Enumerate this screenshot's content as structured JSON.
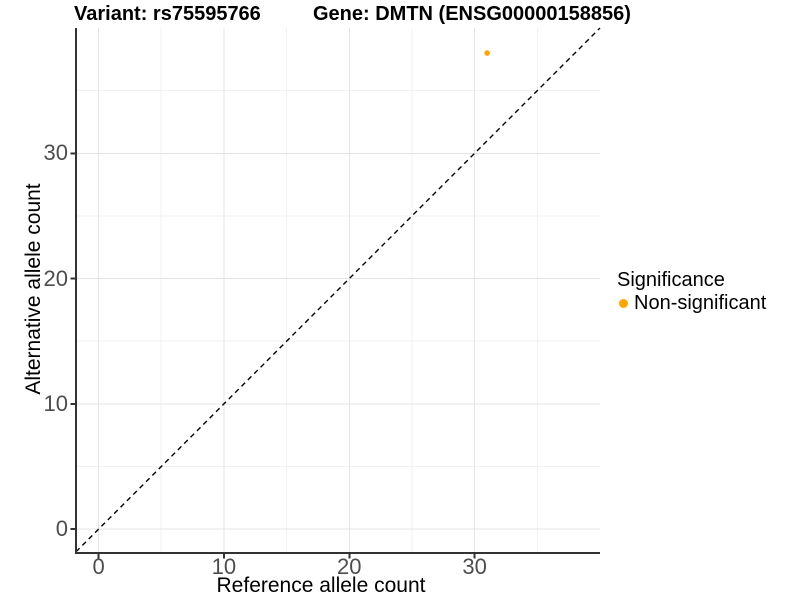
{
  "chart_data": {
    "type": "scatter",
    "title_variant": "Variant: rs75595766",
    "title_gene": "Gene: DMTN (ENSG00000158856)",
    "xlabel": "Reference allele count",
    "ylabel": "Alternative allele count",
    "x_ticks": [
      0,
      10,
      20,
      30
    ],
    "y_ticks": [
      0,
      10,
      20,
      30
    ],
    "x_minor": [
      5,
      15,
      25,
      35
    ],
    "y_minor": [
      5,
      15,
      25,
      35
    ],
    "xlim": [
      -1.8,
      40
    ],
    "ylim": [
      -1.9,
      40
    ],
    "identity_line": {
      "style": "dashed",
      "slope": 1,
      "intercept": 0,
      "color": "#000000"
    },
    "series": [
      {
        "name": "Non-significant",
        "color": "#FFA500",
        "points": [
          {
            "x": 31,
            "y": 38
          }
        ]
      }
    ],
    "legend": {
      "position": "right",
      "title": "Significance",
      "entries": [
        {
          "label": "Non-significant",
          "color": "#FFA500"
        }
      ]
    },
    "grid": {
      "major": "#e4e4e4",
      "minor": "#f1f1f1",
      "background": "#ffffff"
    },
    "colors": {
      "axis_line": "#333333",
      "tick_mark": "#333333",
      "tick_label": "#4d4d4d",
      "title": "#000000"
    }
  }
}
